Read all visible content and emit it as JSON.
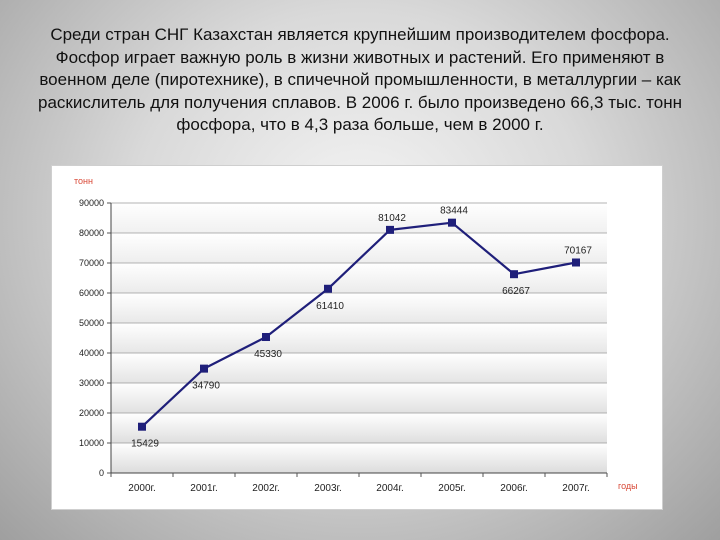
{
  "slide": {
    "text": "Среди стран СНГ Казахстан является крупнейшим производителем фосфора. Фосфор играет важную роль в жизни животных и растений. Его применяют в военном деле (пиротехнике), в спичечной промышленности, в металлургии – как раскислитель для получения сплавов. В 2006 г. было произведено 66,3 тыс. тонн фосфора, что в 4,3 раза больше, чем в 2000 г."
  },
  "chart_data": {
    "type": "line",
    "title": "",
    "xlabel": "годы",
    "ylabel": "тонн",
    "categories": [
      "2000г.",
      "2001г.",
      "2002г.",
      "2003г.",
      "2004г.",
      "2005г.",
      "2006г.",
      "2007г."
    ],
    "series": [
      {
        "values": [
          15429,
          34790,
          45330,
          61410,
          81042,
          83444,
          66267,
          70167
        ],
        "labels": [
          "15429",
          "34790",
          "45330",
          "61410",
          "81042",
          "83444",
          "66267",
          "70167"
        ]
      }
    ],
    "ylim": [
      0,
      90000
    ],
    "yticks": [
      "0",
      "10000",
      "20000",
      "30000",
      "40000",
      "50000",
      "60000",
      "70000",
      "80000",
      "90000"
    ],
    "grid": true,
    "legend": "none",
    "colors": {
      "line": "#1f1f7a",
      "marker": "#1f1f7a",
      "axis_title": "#d94a38",
      "band_dark": "#dcdcdc",
      "band_light": "#ffffff"
    }
  }
}
